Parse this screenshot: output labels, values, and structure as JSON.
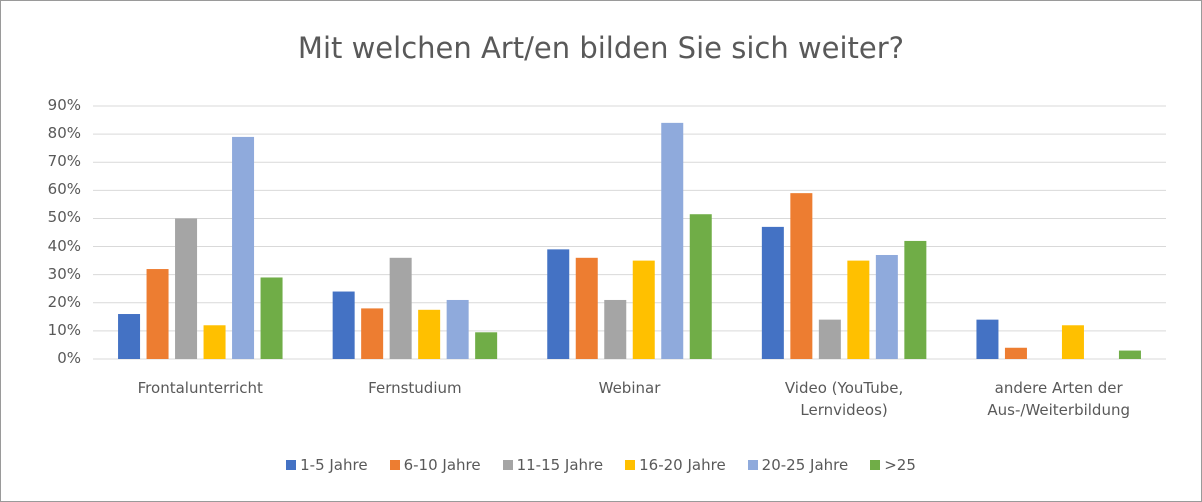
{
  "chart_data": {
    "type": "bar",
    "title": "Mit welchen Art/en bilden Sie sich weiter?",
    "categories": [
      "Frontalunterricht",
      "Fernstudium",
      "Webinar",
      "Video (YouTube, Lernvideos)",
      "andere Arten der Aus-/Weiterbildung"
    ],
    "series": [
      {
        "name": "1-5 Jahre",
        "color": "#4472c4",
        "values": [
          16,
          24,
          39,
          47,
          14
        ]
      },
      {
        "name": "6-10 Jahre",
        "color": "#ed7d31",
        "values": [
          32,
          18,
          36,
          59,
          4
        ]
      },
      {
        "name": "11-15 Jahre",
        "color": "#a5a5a5",
        "values": [
          50,
          36,
          21,
          14,
          0
        ]
      },
      {
        "name": "16-20 Jahre",
        "color": "#ffc000",
        "values": [
          12,
          17.5,
          35,
          35,
          12
        ]
      },
      {
        "name": "20-25 Jahre",
        "color": "#8faadc",
        "values": [
          79,
          21,
          84,
          37,
          0
        ]
      },
      {
        "name": ">25",
        "color": "#70ad47",
        "values": [
          29,
          9.5,
          51.5,
          42,
          3
        ]
      }
    ],
    "ylim": [
      0,
      90
    ],
    "yticks": [
      {
        "value": 0,
        "label": "0%"
      },
      {
        "value": 10,
        "label": "10%"
      },
      {
        "value": 20,
        "label": "20%"
      },
      {
        "value": 30,
        "label": "30%"
      },
      {
        "value": 40,
        "label": "40%"
      },
      {
        "value": 50,
        "label": "50%"
      },
      {
        "value": 60,
        "label": "60%"
      },
      {
        "value": 70,
        "label": "70%"
      },
      {
        "value": 80,
        "label": "80%"
      },
      {
        "value": 90,
        "label": "90%"
      }
    ],
    "grid": true,
    "legend": "bottom"
  }
}
